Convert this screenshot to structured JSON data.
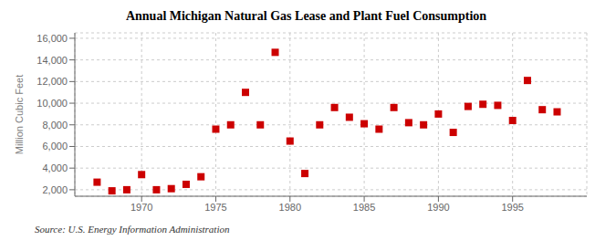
{
  "chart_data": {
    "type": "scatter",
    "title": "Annual Michigan Natural Gas Lease and Plant Fuel Consumption",
    "ylabel": "Million Cubic Feet",
    "annotations": [
      "Source: U.S. Energy Information Administration"
    ],
    "x": [
      1967,
      1968,
      1969,
      1970,
      1971,
      1972,
      1973,
      1974,
      1975,
      1976,
      1977,
      1978,
      1979,
      1980,
      1981,
      1982,
      1983,
      1984,
      1985,
      1986,
      1987,
      1988,
      1989,
      1990,
      1991,
      1992,
      1993,
      1994,
      1995,
      1996,
      1997,
      1998
    ],
    "values": [
      2700,
      1900,
      2000,
      3400,
      2000,
      2100,
      2500,
      3200,
      7600,
      8000,
      11000,
      8000,
      14700,
      6500,
      3500,
      8000,
      9600,
      8700,
      8100,
      7600,
      9600,
      8200,
      8000,
      9000,
      7300,
      9700,
      9900,
      9800,
      8400,
      12100,
      9400,
      9200
    ],
    "color": "#cc0000",
    "marker": "square",
    "xlim": [
      1965.5,
      2000
    ],
    "ylim": [
      1400,
      16500
    ],
    "xticks": [
      1970,
      1975,
      1980,
      1985,
      1990,
      1995
    ],
    "yticks": [
      {
        "value": 2000,
        "label": "2,000"
      },
      {
        "value": 4000,
        "label": "4,000"
      },
      {
        "value": 6000,
        "label": "6,000"
      },
      {
        "value": 8000,
        "label": "8,000"
      },
      {
        "value": 10000,
        "label": "10,000"
      },
      {
        "value": 12000,
        "label": "12,000"
      },
      {
        "value": 14000,
        "label": "14,000"
      },
      {
        "value": 16000,
        "label": "16,000"
      }
    ],
    "grid": true
  }
}
